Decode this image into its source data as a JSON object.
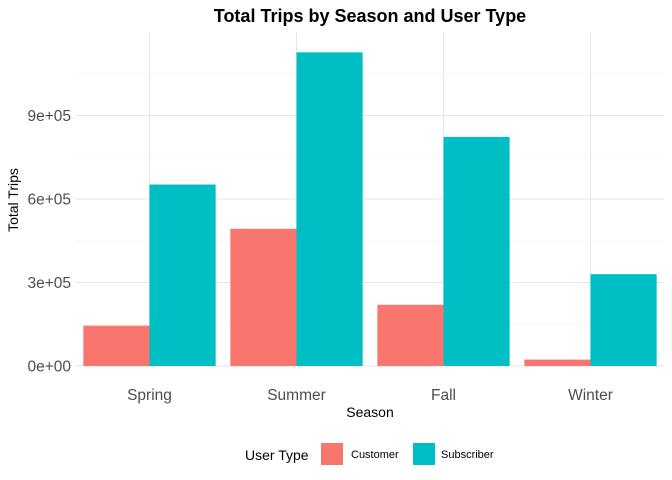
{
  "chart_data": {
    "type": "bar",
    "title": "Total Trips by Season and User Type",
    "xlabel": "Season",
    "ylabel": "Total Trips",
    "categories": [
      "Spring",
      "Summer",
      "Fall",
      "Winter"
    ],
    "series": [
      {
        "name": "Customer",
        "color": "#F8766D",
        "values": [
          145000,
          493000,
          220000,
          23000
        ]
      },
      {
        "name": "Subscriber",
        "color": "#00BFC4",
        "values": [
          652000,
          1127000,
          823000,
          330000
        ]
      }
    ],
    "ylim": [
      0,
      1200000
    ],
    "y_ticks": [
      0,
      300000,
      600000,
      900000
    ],
    "y_tick_labels": [
      "0e+00",
      "3e+05",
      "6e+05",
      "9e+05"
    ],
    "grid": true,
    "legend": {
      "title": "User Type",
      "position": "bottom"
    }
  }
}
